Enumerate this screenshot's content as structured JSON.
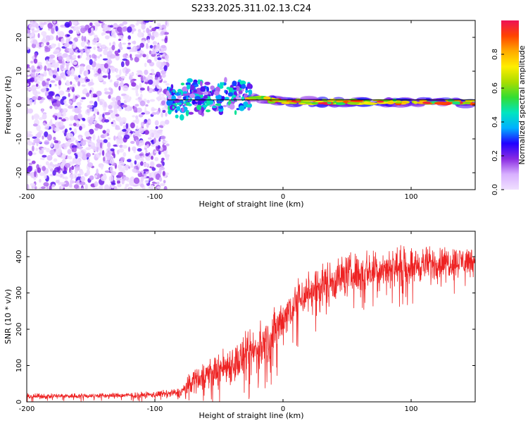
{
  "title": "S233.2025.311.02.13.C24",
  "colors": {
    "snr_line": "#ee2222",
    "frame": "#000000",
    "colorbar_stops": [
      "#f0e0ff",
      "#d8b0ff",
      "#8a2be2",
      "#2200ff",
      "#00b0ff",
      "#00e5c0",
      "#33dd33",
      "#aadd00",
      "#ffee00",
      "#ffaa00",
      "#ff4400",
      "#ee1155"
    ]
  },
  "chart_data": [
    {
      "type": "heatmap",
      "title": "S233.2025.311.02.13.C24",
      "xlabel": "Height of straight line (km)",
      "ylabel": "Frequency (Hz)",
      "xlim": [
        -200,
        150
      ],
      "ylim": [
        -25,
        25
      ],
      "x_ticks": [
        -200,
        -100,
        0,
        100
      ],
      "y_ticks": [
        -20,
        -10,
        0,
        10,
        20
      ],
      "reference_line": {
        "y": 1.5,
        "from_x": -90,
        "to_x": 150
      },
      "ridge": [
        {
          "x": -100,
          "y": 1.5
        },
        {
          "x": -40,
          "y": 2.5
        },
        {
          "x": -20,
          "y": 2.0
        },
        {
          "x": 0,
          "y": 1.0
        },
        {
          "x": 150,
          "y": 0.8
        }
      ],
      "regions": [
        {
          "name": "noise",
          "x_range": [
            -200,
            -90
          ],
          "y_range": [
            -25,
            25
          ],
          "amplitude": [
            0.0,
            0.25
          ]
        },
        {
          "name": "transition",
          "x_range": [
            -90,
            -25
          ],
          "y_range": [
            -5,
            7
          ],
          "amplitude": [
            0.1,
            0.5
          ]
        },
        {
          "name": "tone",
          "x_range": [
            -25,
            150
          ],
          "y_range": [
            -1,
            3
          ],
          "amplitude": [
            0.5,
            1.0
          ]
        }
      ],
      "colorbar": {
        "label": "Normalized spectral amplitude",
        "range": [
          0.0,
          1.0
        ],
        "ticks": [
          "0.0",
          "0.2",
          "0.4",
          "0.6",
          "0.8"
        ]
      }
    },
    {
      "type": "line",
      "xlabel": "Height of straight line (km)",
      "ylabel": "SNR (10 * v/v)",
      "xlim": [
        -200,
        150
      ],
      "ylim": [
        0,
        470
      ],
      "x_ticks": [
        -200,
        -100,
        0,
        100
      ],
      "y_ticks": [
        0,
        100,
        200,
        300,
        400
      ],
      "series": [
        {
          "name": "SNR",
          "envelope": [
            {
              "x": -200,
              "mean": 15,
              "spread": 8
            },
            {
              "x": -120,
              "mean": 18,
              "spread": 8
            },
            {
              "x": -100,
              "mean": 20,
              "spread": 10
            },
            {
              "x": -80,
              "mean": 25,
              "spread": 15
            },
            {
              "x": -70,
              "mean": 60,
              "spread": 40
            },
            {
              "x": -50,
              "mean": 90,
              "spread": 55
            },
            {
              "x": -30,
              "mean": 120,
              "spread": 70
            },
            {
              "x": -10,
              "mean": 170,
              "spread": 80
            },
            {
              "x": 0,
              "mean": 230,
              "spread": 70
            },
            {
              "x": 10,
              "mean": 280,
              "spread": 70
            },
            {
              "x": 30,
              "mean": 320,
              "spread": 70
            },
            {
              "x": 50,
              "mean": 350,
              "spread": 65
            },
            {
              "x": 80,
              "mean": 370,
              "spread": 60
            },
            {
              "x": 100,
              "mean": 375,
              "spread": 55
            },
            {
              "x": 130,
              "mean": 385,
              "spread": 50
            },
            {
              "x": 150,
              "mean": 390,
              "spread": 45
            }
          ]
        }
      ]
    }
  ]
}
